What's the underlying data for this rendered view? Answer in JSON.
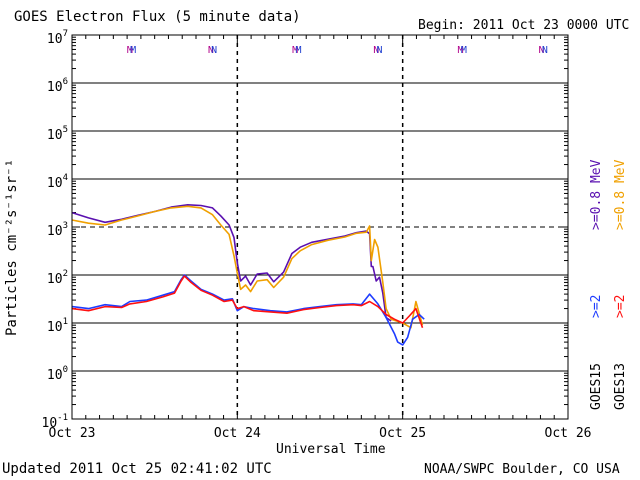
{
  "chart_data": {
    "type": "line",
    "title": "GOES Electron Flux (5 minute data)",
    "begin_label": "Begin: 2011 Oct 23 0000 UTC",
    "xlabel": "Universal Time",
    "ylabel": "Particles cm⁻²s⁻¹sr⁻¹",
    "x_unit": "days since 2011 Oct 23 0000 UTC",
    "xlim": [
      0,
      3
    ],
    "x_ticks": [
      {
        "x": 0,
        "label": "Oct 23"
      },
      {
        "x": 1,
        "label": "Oct 24"
      },
      {
        "x": 2,
        "label": "Oct 25"
      },
      {
        "x": 3,
        "label": "Oct 26"
      }
    ],
    "y_scale": "log",
    "ylim_exp": [
      -1,
      7
    ],
    "y_ticks": [
      {
        "exp": 7,
        "base": "10",
        "sup": "7"
      },
      {
        "exp": 6,
        "base": "10",
        "sup": "6"
      },
      {
        "exp": 5,
        "base": "10",
        "sup": "5"
      },
      {
        "exp": 4,
        "base": "10",
        "sup": "4"
      },
      {
        "exp": 3,
        "base": "10",
        "sup": "3"
      },
      {
        "exp": 2,
        "base": "10",
        "sup": "2"
      },
      {
        "exp": 1,
        "base": "10",
        "sup": "1"
      },
      {
        "exp": 0,
        "base": "10",
        "sup": "0"
      },
      {
        "exp": -1,
        "base": "10",
        "sup": "-1"
      }
    ],
    "dashed_y_exp": 3,
    "noon_markers": [
      {
        "x": 0.35,
        "label": "M",
        "color": "#b0008a"
      },
      {
        "x": 0.37,
        "label": "M",
        "color": "#2040d0"
      },
      {
        "x": 0.84,
        "label": "N",
        "color": "#b0008a"
      },
      {
        "x": 0.86,
        "label": "N",
        "color": "#2040d0"
      },
      {
        "x": 1.35,
        "label": "M",
        "color": "#b0008a"
      },
      {
        "x": 1.37,
        "label": "M",
        "color": "#2040d0"
      },
      {
        "x": 1.84,
        "label": "N",
        "color": "#b0008a"
      },
      {
        "x": 1.86,
        "label": "N",
        "color": "#2040d0"
      },
      {
        "x": 2.35,
        "label": "M",
        "color": "#b0008a"
      },
      {
        "x": 2.37,
        "label": "M",
        "color": "#2040d0"
      },
      {
        "x": 2.84,
        "label": "N",
        "color": "#b0008a"
      },
      {
        "x": 2.86,
        "label": "N",
        "color": "#2040d0"
      }
    ],
    "series": [
      {
        "name": ">=0.8 MeV GOES15",
        "color": "#5a10b0",
        "x": [
          0,
          0.1,
          0.2,
          0.3,
          0.4,
          0.5,
          0.6,
          0.7,
          0.78,
          0.85,
          0.9,
          0.95,
          0.98,
          1.0,
          1.02,
          1.05,
          1.08,
          1.12,
          1.18,
          1.22,
          1.28,
          1.33,
          1.38,
          1.45,
          1.55,
          1.65,
          1.72,
          1.78,
          1.8,
          1.81,
          1.82,
          1.84,
          1.86,
          1.88,
          1.9,
          1.93
        ],
        "y": [
          2000,
          1550,
          1250,
          1450,
          1750,
          2100,
          2600,
          2900,
          2800,
          2500,
          1700,
          1100,
          600,
          180,
          75,
          95,
          62,
          105,
          110,
          72,
          115,
          280,
          380,
          480,
          560,
          650,
          760,
          820,
          720,
          150,
          150,
          75,
          90,
          42,
          13,
          11
        ]
      },
      {
        "name": ">=0.8 MeV GOES13",
        "color": "#f0a000",
        "x": [
          0,
          0.1,
          0.2,
          0.3,
          0.4,
          0.5,
          0.6,
          0.7,
          0.78,
          0.85,
          0.9,
          0.95,
          0.98,
          1.0,
          1.02,
          1.05,
          1.08,
          1.12,
          1.18,
          1.22,
          1.28,
          1.33,
          1.38,
          1.45,
          1.55,
          1.65,
          1.72,
          1.78,
          1.8,
          1.81,
          1.83,
          1.85,
          1.88,
          1.9,
          1.93,
          2.0,
          2.05,
          2.08,
          2.12
        ],
        "y": [
          1400,
          1200,
          1100,
          1400,
          1700,
          2100,
          2500,
          2700,
          2500,
          1800,
          1100,
          700,
          250,
          110,
          50,
          62,
          45,
          75,
          80,
          55,
          90,
          220,
          320,
          430,
          530,
          620,
          740,
          780,
          1050,
          200,
          550,
          380,
          70,
          20,
          12,
          10,
          8,
          28,
          9
        ]
      },
      {
        "name": ">=2 MeV GOES15",
        "color": "#1e3cff",
        "x": [
          0,
          0.1,
          0.2,
          0.3,
          0.35,
          0.45,
          0.55,
          0.62,
          0.66,
          0.68,
          0.72,
          0.78,
          0.85,
          0.92,
          0.97,
          1.0,
          1.04,
          1.1,
          1.2,
          1.3,
          1.4,
          1.5,
          1.6,
          1.7,
          1.75,
          1.8,
          1.85,
          1.9,
          1.95,
          1.97,
          2.0,
          2.03,
          2.06,
          2.1,
          2.13
        ],
        "y": [
          22,
          20,
          24,
          22,
          28,
          30,
          38,
          45,
          80,
          100,
          75,
          50,
          40,
          30,
          32,
          18,
          22,
          20,
          18,
          17,
          20,
          22,
          24,
          25,
          24,
          40,
          25,
          13,
          6,
          4,
          3.5,
          5,
          12,
          15,
          12
        ]
      },
      {
        "name": ">=2 MeV GOES13",
        "color": "#ff1010",
        "x": [
          0,
          0.1,
          0.2,
          0.3,
          0.35,
          0.45,
          0.55,
          0.62,
          0.66,
          0.68,
          0.72,
          0.78,
          0.85,
          0.92,
          0.97,
          1.0,
          1.04,
          1.1,
          1.2,
          1.3,
          1.4,
          1.5,
          1.6,
          1.7,
          1.75,
          1.8,
          1.85,
          1.9,
          1.95,
          2.0,
          2.04,
          2.08,
          2.12
        ],
        "y": [
          20,
          18,
          22,
          21,
          25,
          28,
          35,
          42,
          75,
          95,
          70,
          48,
          38,
          28,
          30,
          20,
          22,
          18,
          17,
          16,
          19,
          21,
          23,
          24,
          23,
          28,
          22,
          15,
          12,
          10,
          14,
          20,
          8
        ]
      }
    ],
    "legend_right": [
      {
        "text": ">=0.8 MeV",
        "color": "#5a10b0"
      },
      {
        "text": ">=0.8 MeV",
        "color": "#f0a000"
      },
      {
        "text": ">=2",
        "color": "#1e3cff"
      },
      {
        "text": ">=2",
        "color": "#ff1010"
      },
      {
        "text": "GOES15",
        "color": "#000000"
      },
      {
        "text": "GOES13",
        "color": "#000000"
      }
    ]
  },
  "footer": {
    "updated": "Updated 2011 Oct 25 02:41:02 UTC",
    "credit": "NOAA/SWPC Boulder, CO USA"
  }
}
